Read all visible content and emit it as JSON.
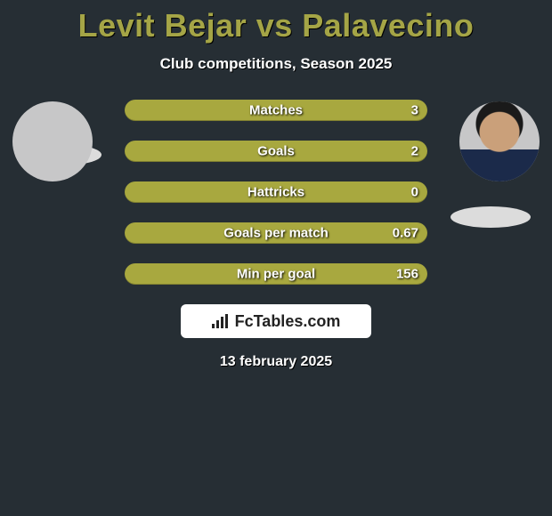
{
  "background_color": "#262e34",
  "accent_color": "#a8a83f",
  "title_color": "#a5a546",
  "text_color": "#ffffff",
  "title": "Levit Bejar vs Palavecino",
  "subtitle": "Club competitions, Season 2025",
  "date": "13 february 2025",
  "logo_text": "FcTables.com",
  "players": {
    "left": {
      "name": "Levit Bejar",
      "has_photo": false
    },
    "right": {
      "name": "Palavecino",
      "has_photo": true
    }
  },
  "bars": {
    "track_color": "#a8a83f",
    "track_height": 24,
    "track_radius": 12,
    "gap": 22,
    "label_fontsize": 15,
    "metrics": [
      {
        "name": "Matches",
        "left": "",
        "right": "3",
        "left_pct": 0,
        "right_pct": 100
      },
      {
        "name": "Goals",
        "left": "",
        "right": "2",
        "left_pct": 0,
        "right_pct": 100
      },
      {
        "name": "Hattricks",
        "left": "",
        "right": "0",
        "left_pct": 0,
        "right_pct": 0
      },
      {
        "name": "Goals per match",
        "left": "",
        "right": "0.67",
        "left_pct": 0,
        "right_pct": 100
      },
      {
        "name": "Min per goal",
        "left": "",
        "right": "156",
        "left_pct": 0,
        "right_pct": 100
      }
    ]
  }
}
